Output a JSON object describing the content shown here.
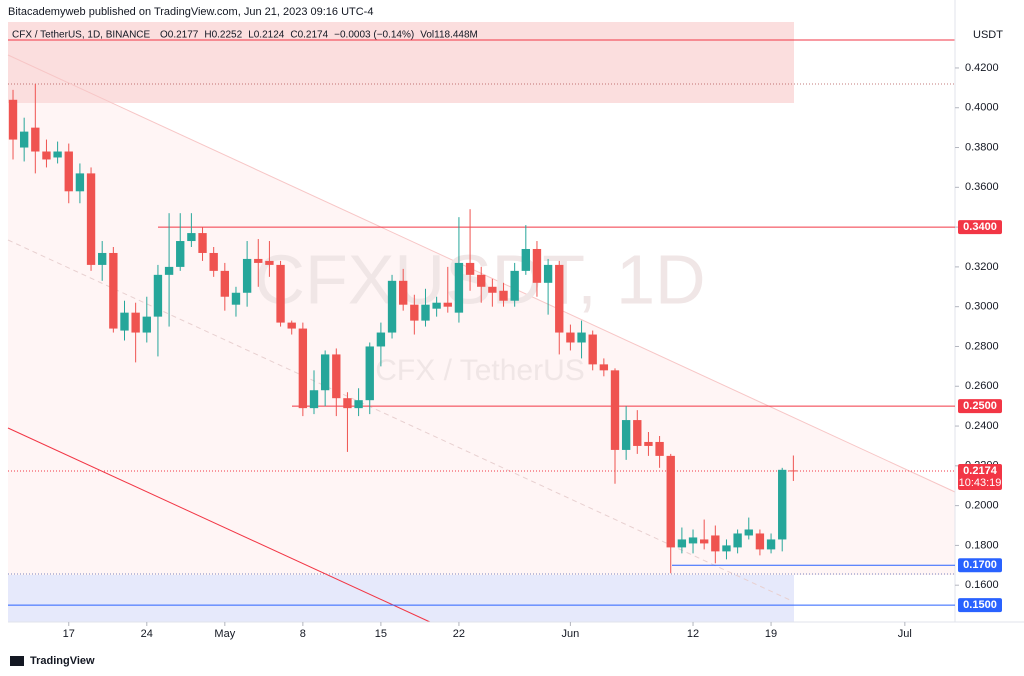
{
  "header": "Bitacademyweb published on TradingView.com, Jun 21, 2023 09:16 UTC-4",
  "footer": "TradingView",
  "chart_data": {
    "type": "candlestick",
    "symbol": "CFX / TetherUS, 1D, BINANCE",
    "legend": [
      "O0.2177",
      "H0.2252",
      "L0.2124",
      "C0.2174",
      "−0.0003 (−0.14%)",
      "Vol118.448M"
    ],
    "watermark": "CFXUSDT, 1D",
    "watermark_sub": "CFX / TetherUS",
    "currency": "USDT",
    "countdown": "10:43:19",
    "up_color": "#26a69a",
    "down_color": "#ef5350",
    "xlim": [
      -0.45,
      84.5
    ],
    "xticks": [
      {
        "value": 5,
        "label": "17"
      },
      {
        "value": 12,
        "label": "24"
      },
      {
        "value": 19,
        "label": "May"
      },
      {
        "value": 26,
        "label": "8"
      },
      {
        "value": 33,
        "label": "15"
      },
      {
        "value": 40,
        "label": "22"
      },
      {
        "value": 50,
        "label": "Jun"
      },
      {
        "value": 61,
        "label": "12"
      },
      {
        "value": 68,
        "label": "19"
      },
      {
        "value": 80,
        "label": "Jul"
      }
    ],
    "ylim": [
      0.1415,
      0.4431
    ],
    "yticks": [
      {
        "value": 0.16,
        "label": "0.1600"
      },
      {
        "value": 0.18,
        "label": "0.1800"
      },
      {
        "value": 0.2,
        "label": "0.2000"
      },
      {
        "value": 0.22,
        "label": "0.2200"
      },
      {
        "value": 0.24,
        "label": "0.2400"
      },
      {
        "value": 0.26,
        "label": "0.2600"
      },
      {
        "value": 0.28,
        "label": "0.2800"
      },
      {
        "value": 0.3,
        "label": "0.3000"
      },
      {
        "value": 0.32,
        "label": "0.3200"
      },
      {
        "value": 0.34,
        "label": "0.3400"
      },
      {
        "value": 0.36,
        "label": "0.3600"
      },
      {
        "value": 0.38,
        "label": "0.3800"
      },
      {
        "value": 0.4,
        "label": "0.4000"
      },
      {
        "value": 0.42,
        "label": "0.4200"
      }
    ],
    "price_lines": [
      {
        "value": 0.34,
        "label": "0.3400",
        "color": "#f23645"
      },
      {
        "value": 0.25,
        "label": "0.2500",
        "color": "#f23645"
      },
      {
        "value": 0.2174,
        "color": "#f23645"
      },
      {
        "value": 0.17,
        "label": "0.1700",
        "color": "#2962ff"
      },
      {
        "value": 0.15,
        "label": "0.1500",
        "color": "#2962ff"
      }
    ],
    "open": [
      0.404,
      0.38,
      0.39,
      0.378,
      0.375,
      0.378,
      0.358,
      0.367,
      0.321,
      0.327,
      0.288,
      0.297,
      0.287,
      0.295,
      0.316,
      0.32,
      0.333,
      0.337,
      0.327,
      0.318,
      0.301,
      0.307,
      0.324,
      0.323,
      0.321,
      0.292,
      0.289,
      0.249,
      0.258,
      0.276,
      0.254,
      0.249,
      0.253,
      0.28,
      0.287,
      0.313,
      0.301,
      0.293,
      0.299,
      0.302,
      0.297,
      0.322,
      0.316,
      0.31,
      0.308,
      0.303,
      0.318,
      0.329,
      0.312,
      0.321,
      0.287,
      0.282,
      0.286,
      0.271,
      0.268,
      0.228,
      0.243,
      0.232,
      0.232,
      0.225,
      0.179,
      0.181,
      0.183,
      0.185,
      0.177,
      0.179,
      0.185,
      0.186,
      0.178,
      0.183,
      0.2177
    ],
    "high": [
      0.409,
      0.395,
      0.412,
      0.384,
      0.383,
      0.382,
      0.372,
      0.37,
      0.333,
      0.33,
      0.303,
      0.302,
      0.305,
      0.321,
      0.347,
      0.347,
      0.347,
      0.34,
      0.33,
      0.322,
      0.31,
      0.333,
      0.334,
      0.333,
      0.323,
      0.293,
      0.292,
      0.268,
      0.278,
      0.279,
      0.257,
      0.259,
      0.282,
      0.292,
      0.316,
      0.319,
      0.306,
      0.309,
      0.305,
      0.32,
      0.345,
      0.349,
      0.32,
      0.314,
      0.312,
      0.322,
      0.341,
      0.333,
      0.324,
      0.323,
      0.291,
      0.293,
      0.288,
      0.274,
      0.269,
      0.25,
      0.248,
      0.237,
      0.235,
      0.226,
      0.189,
      0.188,
      0.193,
      0.19,
      0.183,
      0.188,
      0.194,
      0.188,
      0.186,
      0.219,
      0.2252
    ],
    "low": [
      0.374,
      0.373,
      0.367,
      0.37,
      0.372,
      0.352,
      0.352,
      0.318,
      0.313,
      0.287,
      0.283,
      0.272,
      0.282,
      0.275,
      0.29,
      0.318,
      0.33,
      0.323,
      0.315,
      0.298,
      0.295,
      0.3,
      0.31,
      0.315,
      0.29,
      0.286,
      0.245,
      0.246,
      0.25,
      0.245,
      0.227,
      0.245,
      0.246,
      0.27,
      0.284,
      0.298,
      0.286,
      0.29,
      0.295,
      0.297,
      0.292,
      0.308,
      0.302,
      0.3,
      0.3,
      0.3,
      0.316,
      0.305,
      0.296,
      0.276,
      0.278,
      0.274,
      0.268,
      0.265,
      0.211,
      0.223,
      0.226,
      0.225,
      0.219,
      0.166,
      0.176,
      0.176,
      0.178,
      0.171,
      0.173,
      0.176,
      0.183,
      0.175,
      0.176,
      0.177,
      0.2124
    ],
    "close": [
      0.384,
      0.388,
      0.378,
      0.374,
      0.378,
      0.358,
      0.367,
      0.321,
      0.327,
      0.289,
      0.297,
      0.287,
      0.295,
      0.316,
      0.32,
      0.333,
      0.337,
      0.327,
      0.318,
      0.305,
      0.307,
      0.324,
      0.322,
      0.321,
      0.292,
      0.289,
      0.249,
      0.258,
      0.276,
      0.254,
      0.249,
      0.253,
      0.28,
      0.287,
      0.313,
      0.301,
      0.293,
      0.301,
      0.302,
      0.3,
      0.322,
      0.316,
      0.31,
      0.307,
      0.303,
      0.318,
      0.329,
      0.312,
      0.321,
      0.287,
      0.282,
      0.287,
      0.271,
      0.268,
      0.228,
      0.243,
      0.23,
      0.23,
      0.225,
      0.179,
      0.183,
      0.184,
      0.181,
      0.177,
      0.18,
      0.186,
      0.188,
      0.178,
      0.183,
      0.218,
      0.2174
    ]
  }
}
